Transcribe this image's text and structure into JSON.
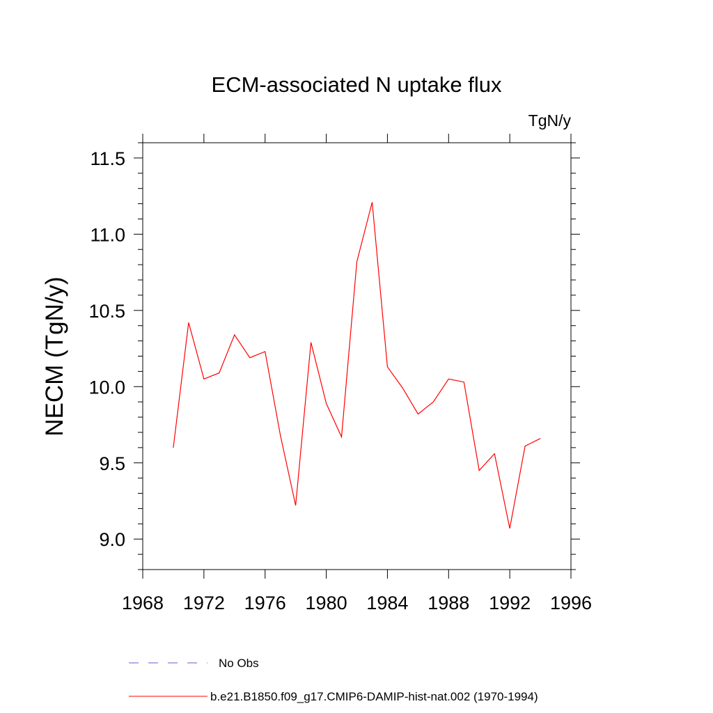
{
  "chart_data": {
    "type": "line",
    "title": "ECM-associated N uptake flux",
    "units": "TgN/y",
    "xlabel": "",
    "ylabel": "NECM  (TgN/y)",
    "xlim": [
      1968,
      1996
    ],
    "ylim": [
      8.8,
      11.6
    ],
    "x_ticks": [
      1968,
      1972,
      1976,
      1980,
      1984,
      1988,
      1992,
      1996
    ],
    "y_ticks": [
      9.0,
      9.5,
      10.0,
      10.5,
      11.0,
      11.5
    ],
    "y_tick_labels": [
      "9.0",
      "9.5",
      "10.0",
      "10.5",
      "11.0",
      "11.5"
    ],
    "grid": false,
    "legend_position": "bottom",
    "series": [
      {
        "name": "b.e21.B1850.f09_g17.CMIP6-DAMIP-hist-nat.002 (1970-1994)",
        "color": "#ff0000",
        "style": "solid",
        "x": [
          1970,
          1971,
          1972,
          1973,
          1974,
          1975,
          1976,
          1977,
          1978,
          1979,
          1980,
          1981,
          1982,
          1983,
          1984,
          1985,
          1986,
          1987,
          1988,
          1989,
          1990,
          1991,
          1992,
          1993,
          1994
        ],
        "y": [
          9.6,
          10.42,
          10.05,
          10.09,
          10.34,
          10.19,
          10.23,
          9.68,
          9.22,
          10.29,
          9.89,
          9.67,
          10.82,
          11.21,
          10.13,
          9.99,
          9.82,
          9.9,
          10.05,
          10.03,
          9.45,
          9.56,
          9.07,
          9.61,
          9.66
        ]
      }
    ],
    "legend": [
      {
        "label": "No Obs",
        "color": "#6a5acd",
        "style": "dashed"
      },
      {
        "label": "b.e21.B1850.f09_g17.CMIP6-DAMIP-hist-nat.002 (1970-1994)",
        "color": "#ff0000",
        "style": "solid"
      }
    ]
  }
}
